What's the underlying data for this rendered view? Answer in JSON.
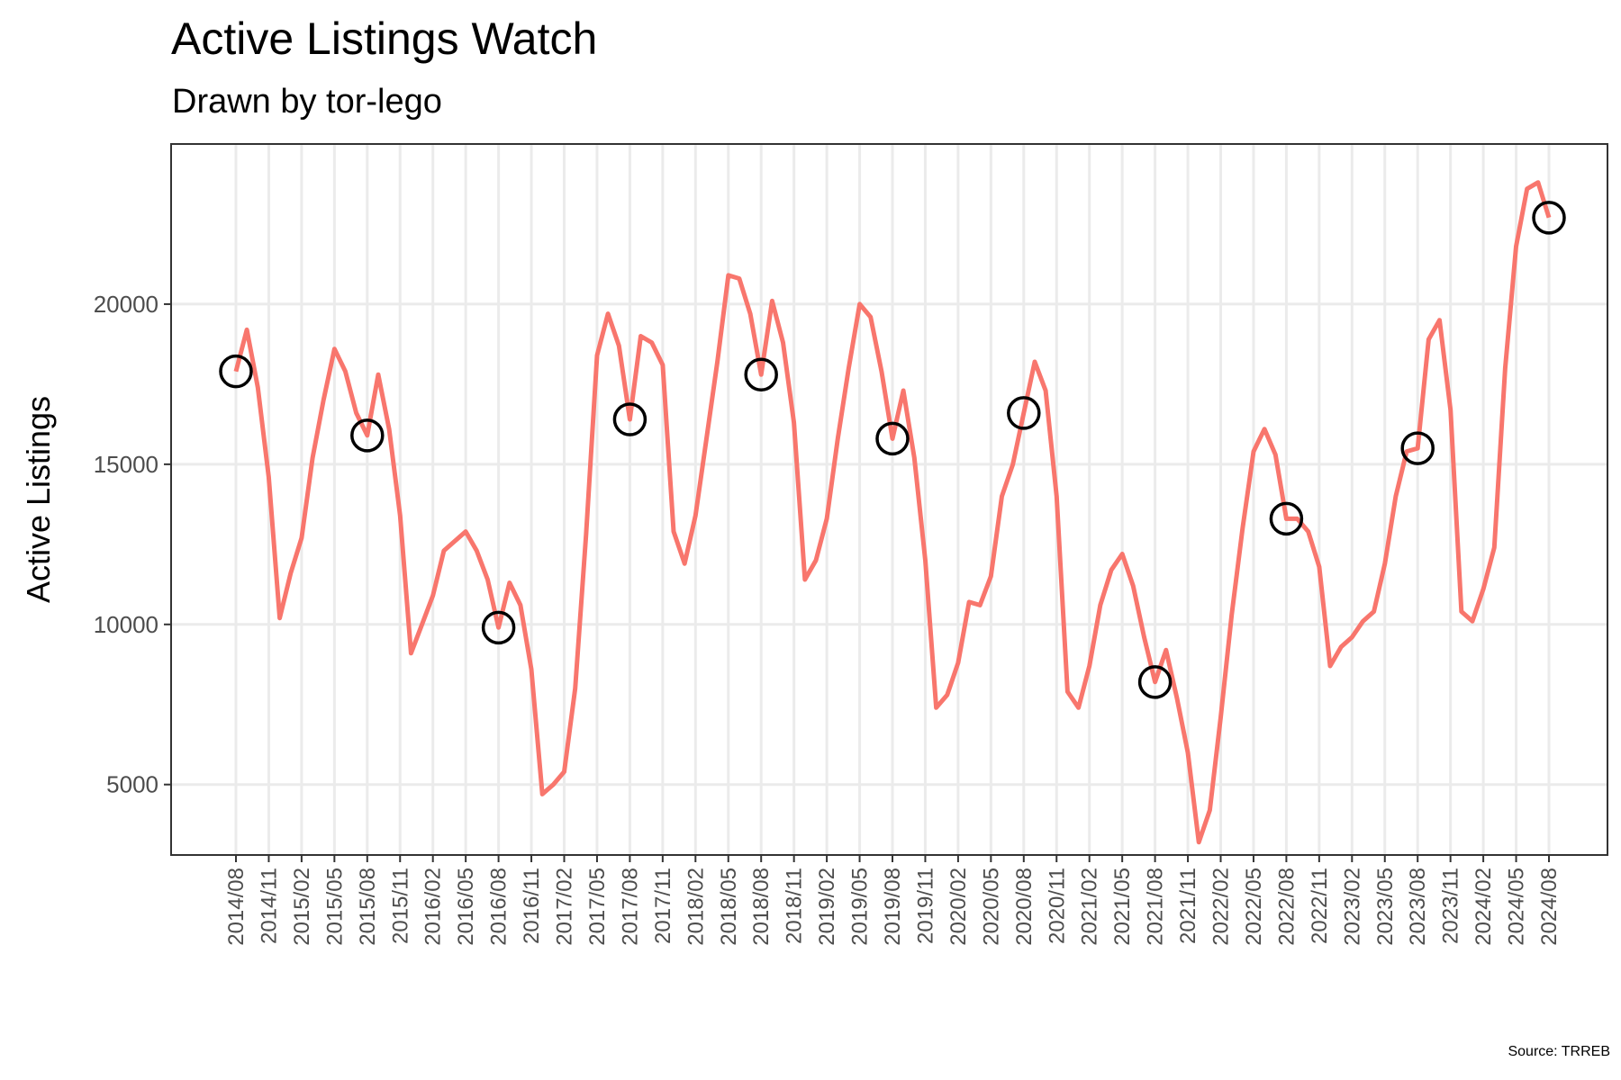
{
  "chart_data": {
    "type": "line",
    "title": "Active Listings Watch",
    "subtitle": "Drawn by tor-lego",
    "caption": "Source: TRREB",
    "xlabel": "",
    "ylabel": "Active Listings",
    "ylim": [
      2800,
      25000
    ],
    "yticks": [
      5000,
      10000,
      15000,
      20000
    ],
    "grid": true,
    "legend": "none",
    "line_color": "#F8766D",
    "marker_color": "#000000",
    "x_tick_labels": [
      "2014/08",
      "2014/11",
      "2015/02",
      "2015/05",
      "2015/08",
      "2015/11",
      "2016/02",
      "2016/05",
      "2016/08",
      "2016/11",
      "2017/02",
      "2017/05",
      "2017/08",
      "2017/11",
      "2018/02",
      "2018/05",
      "2018/08",
      "2018/11",
      "2019/02",
      "2019/05",
      "2019/08",
      "2019/11",
      "2020/02",
      "2020/05",
      "2020/08",
      "2020/11",
      "2021/02",
      "2021/05",
      "2021/08",
      "2021/11",
      "2022/02",
      "2022/05",
      "2022/08",
      "2022/11",
      "2023/02",
      "2023/05",
      "2023/08",
      "2023/11",
      "2024/02",
      "2024/05",
      "2024/08"
    ],
    "x": [
      "2014/08",
      "2014/09",
      "2014/10",
      "2014/11",
      "2014/12",
      "2015/01",
      "2015/02",
      "2015/03",
      "2015/04",
      "2015/05",
      "2015/06",
      "2015/07",
      "2015/08",
      "2015/09",
      "2015/10",
      "2015/11",
      "2015/12",
      "2016/01",
      "2016/02",
      "2016/03",
      "2016/04",
      "2016/05",
      "2016/06",
      "2016/07",
      "2016/08",
      "2016/09",
      "2016/10",
      "2016/11",
      "2016/12",
      "2017/01",
      "2017/02",
      "2017/03",
      "2017/04",
      "2017/05",
      "2017/06",
      "2017/07",
      "2017/08",
      "2017/09",
      "2017/10",
      "2017/11",
      "2017/12",
      "2018/01",
      "2018/02",
      "2018/03",
      "2018/04",
      "2018/05",
      "2018/06",
      "2018/07",
      "2018/08",
      "2018/09",
      "2018/10",
      "2018/11",
      "2018/12",
      "2019/01",
      "2019/02",
      "2019/03",
      "2019/04",
      "2019/05",
      "2019/06",
      "2019/07",
      "2019/08",
      "2019/09",
      "2019/10",
      "2019/11",
      "2019/12",
      "2020/01",
      "2020/02",
      "2020/03",
      "2020/04",
      "2020/05",
      "2020/06",
      "2020/07",
      "2020/08",
      "2020/09",
      "2020/10",
      "2020/11",
      "2020/12",
      "2021/01",
      "2021/02",
      "2021/03",
      "2021/04",
      "2021/05",
      "2021/06",
      "2021/07",
      "2021/08",
      "2021/09",
      "2021/10",
      "2021/11",
      "2021/12",
      "2022/01",
      "2022/02",
      "2022/03",
      "2022/04",
      "2022/05",
      "2022/06",
      "2022/07",
      "2022/08",
      "2022/09",
      "2022/10",
      "2022/11",
      "2022/12",
      "2023/01",
      "2023/02",
      "2023/03",
      "2023/04",
      "2023/05",
      "2023/06",
      "2023/07",
      "2023/08",
      "2023/09",
      "2023/10",
      "2023/11",
      "2023/12",
      "2024/01",
      "2024/02",
      "2024/03",
      "2024/04",
      "2024/05",
      "2024/06",
      "2024/07",
      "2024/08"
    ],
    "values": [
      17900,
      19200,
      17400,
      14600,
      10200,
      11600,
      12700,
      15200,
      17000,
      18600,
      17900,
      16600,
      15900,
      17800,
      16100,
      13400,
      9100,
      10000,
      10900,
      12300,
      12600,
      12900,
      12300,
      11400,
      9900,
      11300,
      10600,
      8600,
      4700,
      5000,
      5400,
      8000,
      12800,
      18400,
      19700,
      18700,
      16400,
      19000,
      18800,
      18100,
      12900,
      11900,
      13400,
      15800,
      18200,
      20900,
      20800,
      19700,
      17800,
      20100,
      18800,
      16300,
      11400,
      12000,
      13300,
      15800,
      18000,
      20000,
      19600,
      17900,
      15800,
      17300,
      15200,
      12000,
      7400,
      7800,
      8800,
      10700,
      10600,
      11500,
      14000,
      15000,
      16600,
      18200,
      17300,
      14000,
      7900,
      7400,
      8700,
      10600,
      11700,
      12200,
      11200,
      9600,
      8200,
      9200,
      7700,
      6000,
      3200,
      4200,
      7100,
      10300,
      13000,
      15400,
      16100,
      15300,
      13300,
      13300,
      12900,
      11800,
      8700,
      9300,
      9600,
      10100,
      10400,
      11900,
      14000,
      15400,
      15500,
      18900,
      19500,
      16700,
      10400,
      10100,
      11100,
      12400,
      18000,
      21800,
      23600,
      23800,
      22700
    ],
    "highlight_points": [
      {
        "x": "2014/08",
        "y": 17900
      },
      {
        "x": "2015/08",
        "y": 15900
      },
      {
        "x": "2016/08",
        "y": 9900
      },
      {
        "x": "2017/08",
        "y": 16400
      },
      {
        "x": "2018/08",
        "y": 17800
      },
      {
        "x": "2019/08",
        "y": 15800
      },
      {
        "x": "2020/08",
        "y": 16600
      },
      {
        "x": "2021/08",
        "y": 8200
      },
      {
        "x": "2022/08",
        "y": 13300
      },
      {
        "x": "2023/08",
        "y": 15500
      },
      {
        "x": "2024/08",
        "y": 22700
      }
    ]
  }
}
